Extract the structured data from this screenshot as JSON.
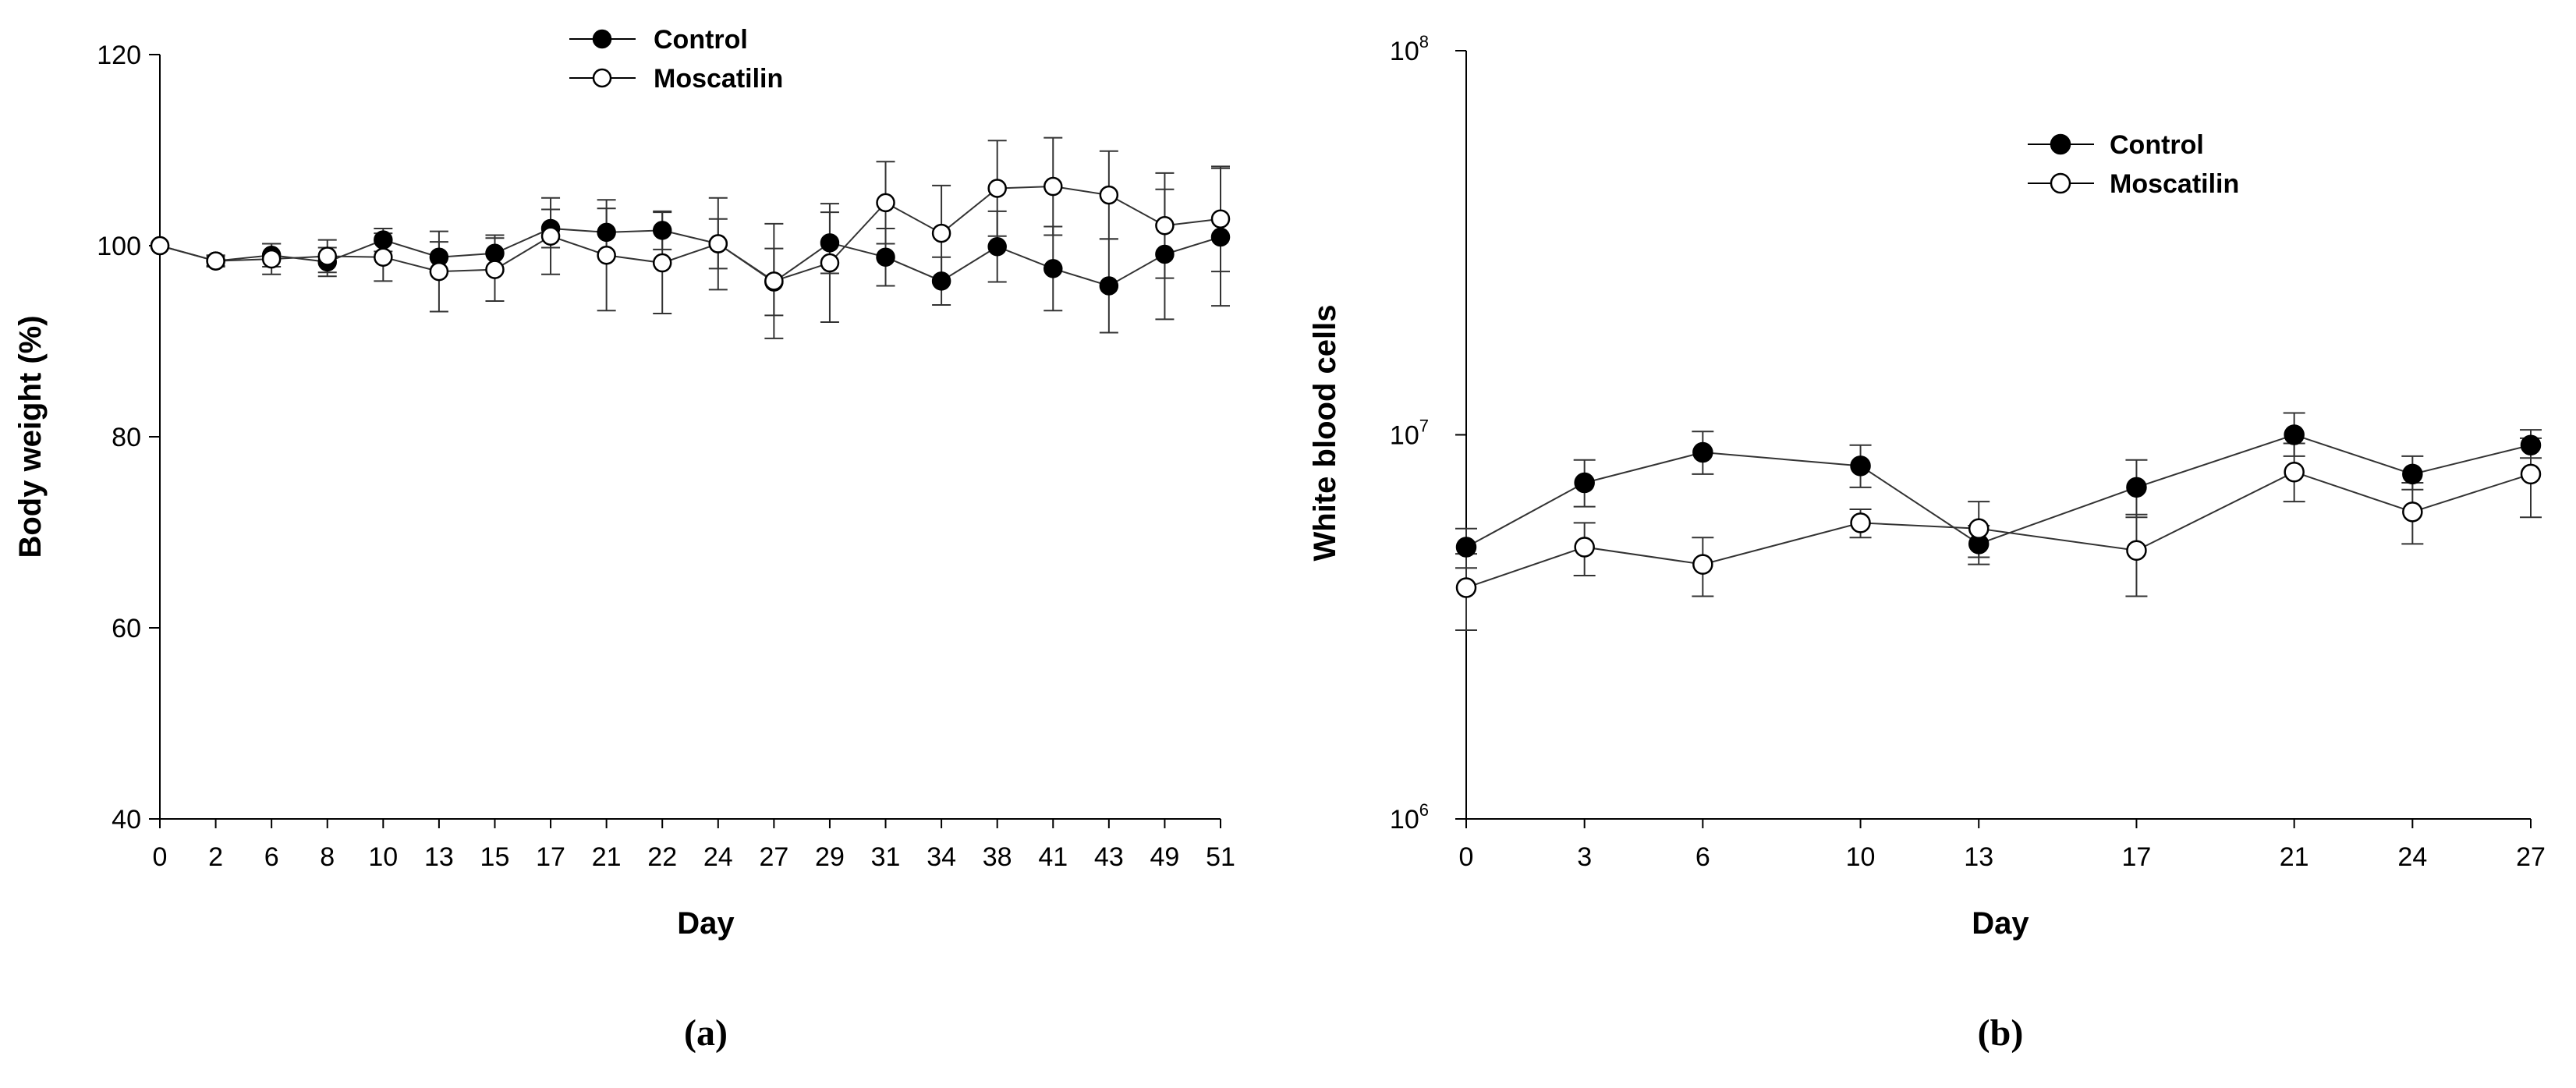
{
  "chart_data": [
    {
      "type": "line",
      "panel_label": "(a)",
      "xlabel": "Day",
      "ylabel": "Body weight (%)",
      "categories": [
        "0",
        "2",
        "6",
        "8",
        "10",
        "13",
        "15",
        "17",
        "21",
        "22",
        "24",
        "27",
        "29",
        "31",
        "34",
        "38",
        "41",
        "43",
        "49",
        "51"
      ],
      "yticks": [
        "40",
        "60",
        "80",
        "100",
        "120"
      ],
      "ylim": [
        40,
        120
      ],
      "legend_position": "top-center",
      "series": [
        {
          "name": "Control",
          "marker": "filled",
          "values": [
            100,
            98.4,
            99.0,
            98.3,
            100.6,
            98.8,
            99.2,
            101.8,
            101.4,
            101.6,
            100.2,
            96.2,
            100.3,
            98.8,
            96.3,
            99.9,
            97.6,
            95.8,
            99.1,
            100.9
          ],
          "errors": [
            0,
            0.6,
            1.2,
            1.5,
            1.2,
            1.6,
            1.9,
            2.0,
            2.5,
            2.0,
            2.6,
            3.5,
            3.2,
            3.0,
            2.5,
            3.7,
            4.4,
            4.9,
            6.8,
            7.2
          ]
        },
        {
          "name": "Moscatilin",
          "marker": "open",
          "values": [
            100,
            98.4,
            98.6,
            98.9,
            98.8,
            97.3,
            97.5,
            101.0,
            99.0,
            98.2,
            100.2,
            96.3,
            98.2,
            104.5,
            101.3,
            106.0,
            106.2,
            105.3,
            102.1,
            102.8
          ],
          "errors": [
            0,
            0.5,
            1.6,
            1.7,
            2.5,
            4.2,
            3.3,
            4.0,
            5.8,
            5.3,
            4.8,
            6.0,
            6.2,
            4.3,
            5.0,
            5.0,
            5.1,
            4.6,
            5.5,
            5.5
          ]
        }
      ]
    },
    {
      "type": "line",
      "panel_label": "(b)",
      "xlabel": "Day",
      "ylabel": "White blood cells",
      "yscale": "log",
      "categories": [
        "0",
        "3",
        "6",
        "10",
        "13",
        "17",
        "21",
        "24",
        "27"
      ],
      "x": [
        0,
        3,
        6,
        10,
        13,
        17,
        21,
        24,
        27
      ],
      "yticks": [
        {
          "base": "10",
          "exp": "6",
          "value": 1000000
        },
        {
          "base": "10",
          "exp": "7",
          "value": 10000000
        },
        {
          "base": "10",
          "exp": "8",
          "value": 100000000
        }
      ],
      "ylim": [
        1000000,
        100000000
      ],
      "legend_position": "upper-right",
      "series": [
        {
          "name": "Control",
          "marker": "filled",
          "values": [
            5100000,
            7500000,
            9000000,
            8300000,
            5200000,
            7300000,
            10000000,
            7900000,
            9400000
          ],
          "err_lo": [
            600000,
            1000000,
            1100000,
            1000000,
            600000,
            1200000,
            1200000,
            700000,
            700000
          ],
          "err_hi": [
            600000,
            1100000,
            1200000,
            1100000,
            600000,
            1300000,
            1400000,
            900000,
            900000
          ]
        },
        {
          "name": "Moscatilin",
          "marker": "open",
          "values": [
            4000000,
            5100000,
            4600000,
            5900000,
            5700000,
            5000000,
            8000000,
            6300000,
            7900000
          ],
          "err_lo": [
            900000,
            800000,
            800000,
            500000,
            900000,
            1200000,
            1300000,
            1100000,
            1800000
          ],
          "err_hi": [
            900000,
            800000,
            800000,
            500000,
            1000000,
            1200000,
            1500000,
            1200000,
            1900000
          ]
        }
      ]
    }
  ]
}
